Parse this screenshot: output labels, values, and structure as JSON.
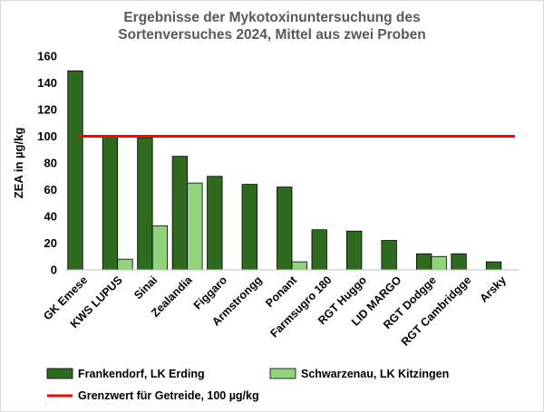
{
  "chart_data": {
    "type": "bar",
    "title_lines": [
      "Ergebnisse der Mykotoxinuntersuchung des",
      "Sortenversuches 2024, Mittel aus zwei Proben"
    ],
    "ylabel": "ZEA in µg/kg",
    "ylim": [
      0,
      160
    ],
    "yticks": [
      0,
      20,
      40,
      60,
      80,
      100,
      120,
      140,
      160
    ],
    "categories": [
      "GK Emese",
      "KWS LUPUS",
      "Sinai",
      "Zealandia",
      "Figgaro",
      "Armstrongg",
      "Ponant",
      "Farmsugro 180",
      "RGT Huggo",
      "LID MARGO",
      "RGT Dodgge",
      "RGT Cambridgge",
      "Arsky"
    ],
    "series": [
      {
        "name": "Frankendorf, LK Erding",
        "color": "#2e6b1f",
        "values": [
          149,
          100,
          99,
          85,
          70,
          64,
          62,
          30,
          29,
          22,
          12,
          12,
          6
        ]
      },
      {
        "name": "Schwarzenau, LK Kitzingen",
        "color": "#8fd47a",
        "values": [
          null,
          8,
          33,
          65,
          null,
          null,
          6,
          null,
          null,
          null,
          10,
          null,
          null
        ]
      }
    ],
    "reference_line": {
      "name": "Grenzwert für Getreide, 100 µg/kg",
      "value": 100,
      "color": "#ff0000"
    },
    "legend_position": "bottom",
    "grid": false
  }
}
